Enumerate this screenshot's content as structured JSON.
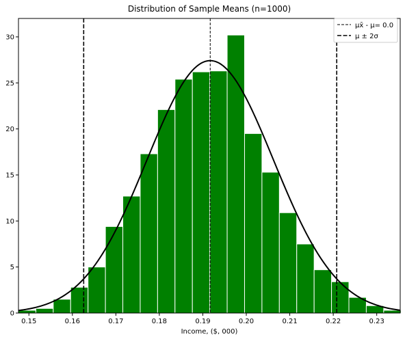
{
  "chart_data": {
    "type": "bar",
    "title": "Distribution of Sample Means (n=1000)",
    "xlabel": "Income, ($, 000)",
    "ylabel": "",
    "xlim": [
      0.1476,
      0.2354
    ],
    "ylim": [
      0,
      32
    ],
    "xticks": [
      0.15,
      0.16,
      0.17,
      0.18,
      0.19,
      0.2,
      0.21,
      0.22,
      0.23
    ],
    "xtick_labels": [
      "0.15",
      "0.16",
      "0.17",
      "0.18",
      "0.19",
      "0.20",
      "0.21",
      "0.22",
      "0.23"
    ],
    "yticks": [
      0,
      5,
      10,
      15,
      20,
      25,
      30
    ],
    "ytick_labels": [
      "0",
      "5",
      "10",
      "15",
      "20",
      "25",
      "30"
    ],
    "bin_width": 0.004,
    "bars": [
      {
        "x_start": 0.1476,
        "height": 0.3
      },
      {
        "x_start": 0.1516,
        "height": 0.5
      },
      {
        "x_start": 0.1556,
        "height": 1.5
      },
      {
        "x_start": 0.1596,
        "height": 2.8
      },
      {
        "x_start": 0.1636,
        "height": 5.0
      },
      {
        "x_start": 0.1676,
        "height": 9.4
      },
      {
        "x_start": 0.1716,
        "height": 12.7
      },
      {
        "x_start": 0.1756,
        "height": 17.3
      },
      {
        "x_start": 0.1796,
        "height": 22.1
      },
      {
        "x_start": 0.1836,
        "height": 25.4
      },
      {
        "x_start": 0.1876,
        "height": 26.2
      },
      {
        "x_start": 0.1916,
        "height": 26.3
      },
      {
        "x_start": 0.1956,
        "height": 30.2
      },
      {
        "x_start": 0.1996,
        "height": 19.5
      },
      {
        "x_start": 0.2036,
        "height": 15.3
      },
      {
        "x_start": 0.2076,
        "height": 10.9
      },
      {
        "x_start": 0.2116,
        "height": 7.5
      },
      {
        "x_start": 0.2156,
        "height": 4.7
      },
      {
        "x_start": 0.2196,
        "height": 3.4
      },
      {
        "x_start": 0.2236,
        "height": 1.7
      },
      {
        "x_start": 0.2276,
        "height": 0.8
      },
      {
        "x_start": 0.2316,
        "height": 0.3
      }
    ],
    "density_curve": {
      "mean": 0.1917,
      "std": 0.01455
    },
    "vlines": [
      {
        "x": 0.1917,
        "style": "thin-dashed"
      },
      {
        "x": 0.1626,
        "style": "thick-dashed"
      },
      {
        "x": 0.2208,
        "style": "thick-dashed"
      }
    ],
    "legend": {
      "placement": "top-right",
      "entries": [
        {
          "label": "μx̄ - μ= 0.0",
          "style": "thin-dashed"
        },
        {
          "label": "μ ± 2σ",
          "style": "thick-dashed"
        }
      ]
    },
    "colors": {
      "bars": "#008000",
      "bar_edge": "#ffffff",
      "curve": "#000000",
      "lines": "#000000",
      "background": "#ffffff"
    },
    "grid": false
  }
}
